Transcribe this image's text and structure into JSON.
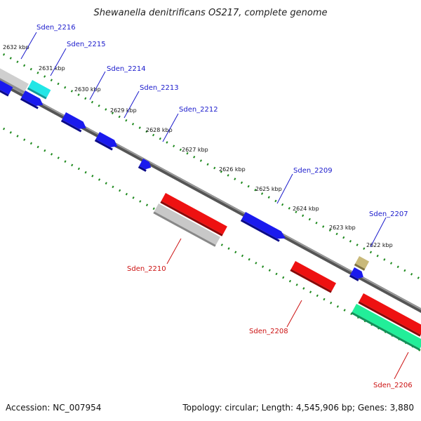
{
  "title": "Shewanella denitrificans OS217, complete genome",
  "footer": {
    "accession": "Accession: NC_007954",
    "summary": "Topology: circular; Length: 4,545,906 bp; Genes: 3,880"
  },
  "colors": {
    "backbone": "#777777",
    "tick": "#1f8a1f",
    "forward_gene": "#1a1aee",
    "reverse_gene": "#ee1111",
    "forward_label": "#1a1acc",
    "reverse_label": "#cc1111"
  },
  "kbp_ticks": [
    "2632 kbp",
    "2631 kbp",
    "2630 kbp",
    "2629 kbp",
    "2628 kbp",
    "2627 kbp",
    "2626 kbp",
    "2625 kbp",
    "2624 kbp",
    "2623 kbp",
    "2622 kbp"
  ],
  "forward_labels": [
    "Sden_2216",
    "Sden_2215",
    "Sden_2214",
    "Sden_2213",
    "Sden_2212",
    "Sden_2209",
    "Sden_2207"
  ],
  "reverse_labels": [
    "Sden_2210",
    "Sden_2208",
    "Sden_2206"
  ],
  "feature_colors": {
    "gray_gene": "#bdbdbd",
    "cyan_gene": "#22e6e6",
    "tan_gene": "#b7a86a",
    "teal_gene": "#22ee99"
  }
}
